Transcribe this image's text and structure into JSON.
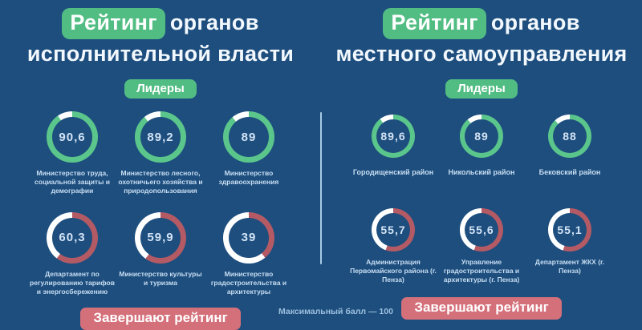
{
  "ui": {
    "leaders_badge": "Лидеры",
    "bottom_badge": "Завершают рейтинг",
    "max_note": "Максимальный балл — 100"
  },
  "colors": {
    "background": "#1d4e7e",
    "green": "#5bc68b",
    "red": "#b35a64",
    "track": "#ffffff",
    "badge_green": "#52bd83",
    "badge_red": "#d4707a",
    "divider": "#a8cbe7",
    "title_text": "#f2f8fd",
    "value_text": "#d3e3f5",
    "label_text": "#c9def2",
    "note_text": "#9cc0de"
  },
  "chart_data": [
    {
      "type": "donut-gauge-group",
      "title_highlight": "Рейтинг",
      "title_line1_rest": "органов",
      "title_line2": "исполнительной власти",
      "max": 100,
      "leaders": [
        {
          "label": "Министерство труда, социальной защиты и демографии",
          "value": 90.6,
          "display": "90,6"
        },
        {
          "label": "Министерство лесного, охотничьего хозяйства и природопользования",
          "value": 89.2,
          "display": "89,2"
        },
        {
          "label": "Министерство здравоохранения",
          "value": 89,
          "display": "89"
        }
      ],
      "bottom": [
        {
          "label": "Департамент по регулированию тарифов и энергосбережению",
          "value": 60.3,
          "display": "60,3"
        },
        {
          "label": "Министерство культуры и туризма",
          "value": 59.9,
          "display": "59,9"
        },
        {
          "label": "Министерство градостроительства и архитектуры",
          "value": 39,
          "display": "39"
        }
      ]
    },
    {
      "type": "donut-gauge-group",
      "title_highlight": "Рейтинг",
      "title_line1_rest": "органов",
      "title_line2": "местного самоуправления",
      "max": 100,
      "leaders": [
        {
          "label": "Городищенский район",
          "value": 89.6,
          "display": "89,6"
        },
        {
          "label": "Никольский район",
          "value": 89,
          "display": "89"
        },
        {
          "label": "Бековский район",
          "value": 88,
          "display": "88"
        }
      ],
      "bottom": [
        {
          "label": "Администрация Первомайского района (г. Пенза)",
          "value": 55.7,
          "display": "55,7"
        },
        {
          "label": "Управление градостроительства и архитектуры (г. Пенза)",
          "value": 55.6,
          "display": "55,6"
        },
        {
          "label": "Департамент ЖКХ (г. Пенза)",
          "value": 55.1,
          "display": "55,1"
        }
      ]
    }
  ]
}
